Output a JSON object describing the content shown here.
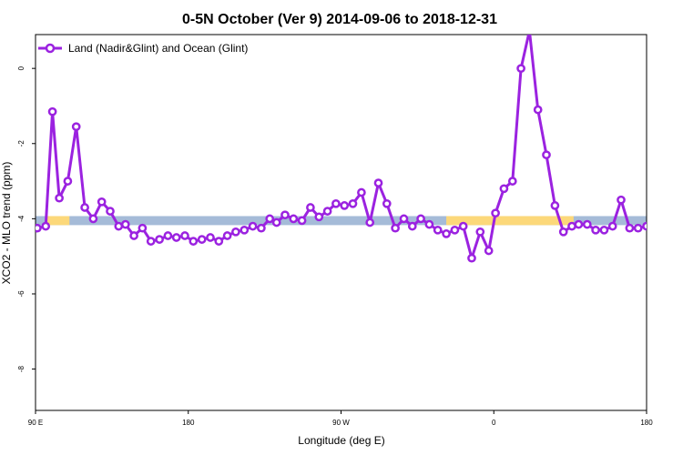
{
  "chart_data": {
    "type": "line",
    "title": "0-5N October (Ver 9)   2014-09-06 to 2018-12-31",
    "xlabel": "Longitude (deg E)",
    "ylabel": "XCO2 - MLO trend (ppm)",
    "xlim": [
      90,
      450
    ],
    "ylim": [
      -9.1,
      0.9
    ],
    "x_tick_values": [
      90,
      180,
      270,
      360,
      450
    ],
    "x_tick_labels": [
      "90 E",
      "180",
      "90 W",
      "0",
      "180"
    ],
    "y_ticks": [
      0,
      -2,
      -4,
      -6,
      -8
    ],
    "legend_position": "top-left",
    "line_color": "#9b22e0",
    "band": {
      "y_center": -4.05,
      "half_height": 0.12,
      "ocean_color": "#a5bbd8",
      "land_color": "#fcd87a",
      "land_ranges": [
        [
          96,
          110
        ],
        [
          332,
          407
        ],
        [
          475,
          485
        ],
        [
          550,
          560
        ],
        [
          570,
          575
        ]
      ]
    },
    "series": [
      {
        "name": "Land (Nadir&Glint) and Ocean (Glint)",
        "x": [
          91,
          96,
          100,
          104,
          109,
          114,
          119,
          124,
          129,
          134,
          139,
          143,
          148,
          153,
          158,
          163,
          168,
          173,
          178,
          183,
          188,
          193,
          198,
          203,
          208,
          213,
          218,
          223,
          228,
          232,
          237,
          242,
          247,
          252,
          257,
          262,
          267,
          272,
          277,
          282,
          287,
          292,
          297,
          302,
          307,
          312,
          317,
          322,
          327,
          332,
          337,
          342,
          347,
          352,
          357,
          361,
          366,
          371,
          376,
          381,
          386,
          391,
          396,
          401,
          406,
          410,
          415,
          420,
          425,
          430,
          435,
          440,
          445,
          450
        ],
        "y": [
          -4.25,
          -4.2,
          -1.15,
          -3.45,
          -3.0,
          -1.55,
          -3.7,
          -4.0,
          -3.55,
          -3.8,
          -4.2,
          -4.15,
          -4.45,
          -4.25,
          -4.6,
          -4.55,
          -4.45,
          -4.5,
          -4.45,
          -4.6,
          -4.55,
          -4.5,
          -4.6,
          -4.45,
          -4.35,
          -4.3,
          -4.2,
          -4.25,
          -4.0,
          -4.1,
          -3.9,
          -4.0,
          -4.05,
          -3.7,
          -3.95,
          -3.8,
          -3.6,
          -3.65,
          -3.6,
          -3.3,
          -4.1,
          -3.05,
          -3.6,
          -4.25,
          -4.0,
          -4.2,
          -4.0,
          -4.15,
          -4.3,
          -4.4,
          -4.3,
          -4.2,
          -5.05,
          -4.35,
          -4.85,
          -3.85,
          -3.2,
          -3.0,
          0.0,
          1.0,
          -1.1,
          -2.3,
          -3.65,
          -4.35,
          -4.2,
          -4.15,
          -4.15,
          -4.3,
          -4.3,
          -4.2,
          -3.5,
          -4.25,
          -4.25,
          -4.2
        ]
      }
    ]
  }
}
